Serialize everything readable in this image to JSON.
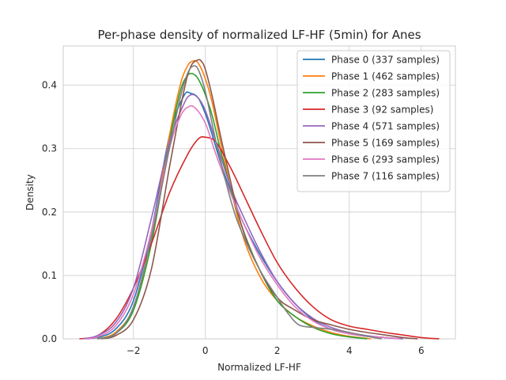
{
  "chart_data": {
    "type": "line",
    "title": "Per-phase density of normalized LF-HF (5min) for Anes",
    "xlabel": "Normalized LF-HF",
    "ylabel": "Density",
    "xlim": [
      -3.95,
      6.95
    ],
    "ylim": [
      0,
      0.462
    ],
    "x_ticks": [
      -2,
      0,
      2,
      4,
      6
    ],
    "x_tick_labels": [
      "−2",
      "0",
      "2",
      "4",
      "6"
    ],
    "y_ticks": [
      0.0,
      0.1,
      0.2,
      0.3,
      0.4
    ],
    "y_tick_labels": [
      "0.0",
      "0.1",
      "0.2",
      "0.3",
      "0.4"
    ],
    "grid": true,
    "legend_position": "top-right",
    "series": [
      {
        "name": "Phase 0 (337 samples)",
        "color": "#1f77b4",
        "x": [
          -3.3,
          -3.0,
          -2.5,
          -2.0,
          -1.5,
          -1.0,
          -0.6,
          -0.4,
          -0.2,
          0.0,
          0.2,
          0.5,
          1.0,
          1.5,
          2.0,
          2.5,
          3.0,
          3.5,
          4.0,
          4.5,
          5.0,
          5.4
        ],
        "y": [
          0.0,
          0.002,
          0.015,
          0.06,
          0.17,
          0.32,
          0.383,
          0.387,
          0.38,
          0.355,
          0.32,
          0.265,
          0.19,
          0.135,
          0.09,
          0.055,
          0.03,
          0.015,
          0.008,
          0.004,
          0.002,
          0.0
        ]
      },
      {
        "name": "Phase 1 (462 samples)",
        "color": "#ff7f0e",
        "x": [
          -3.0,
          -2.5,
          -2.0,
          -1.5,
          -1.0,
          -0.7,
          -0.5,
          -0.35,
          -0.2,
          0.0,
          0.2,
          0.5,
          1.0,
          1.5,
          2.0,
          2.5,
          3.0,
          3.5,
          4.0,
          4.6
        ],
        "y": [
          0.0,
          0.01,
          0.05,
          0.16,
          0.32,
          0.4,
          0.43,
          0.438,
          0.435,
          0.41,
          0.37,
          0.29,
          0.17,
          0.1,
          0.06,
          0.035,
          0.02,
          0.01,
          0.004,
          0.0
        ]
      },
      {
        "name": "Phase 2 (283 samples)",
        "color": "#2ca02c",
        "x": [
          -3.0,
          -2.5,
          -2.0,
          -1.5,
          -1.0,
          -0.7,
          -0.5,
          -0.35,
          -0.2,
          0.0,
          0.2,
          0.5,
          1.0,
          1.5,
          2.0,
          2.5,
          3.0,
          3.5,
          4.0,
          4.5
        ],
        "y": [
          0.0,
          0.008,
          0.045,
          0.15,
          0.31,
          0.39,
          0.415,
          0.418,
          0.41,
          0.385,
          0.35,
          0.28,
          0.18,
          0.11,
          0.06,
          0.035,
          0.018,
          0.008,
          0.003,
          0.0
        ]
      },
      {
        "name": "Phase 3 (92 samples)",
        "color": "#d62728",
        "x": [
          -3.5,
          -3.0,
          -2.5,
          -2.0,
          -1.5,
          -1.0,
          -0.5,
          -0.2,
          0.0,
          0.3,
          0.7,
          1.0,
          1.5,
          2.0,
          2.5,
          3.0,
          3.5,
          4.0,
          4.5,
          5.0,
          5.5,
          6.0,
          6.5
        ],
        "y": [
          0.0,
          0.005,
          0.03,
          0.08,
          0.15,
          0.23,
          0.29,
          0.315,
          0.318,
          0.31,
          0.27,
          0.235,
          0.175,
          0.12,
          0.08,
          0.05,
          0.03,
          0.02,
          0.015,
          0.01,
          0.006,
          0.002,
          0.0
        ]
      },
      {
        "name": "Phase 4 (571 samples)",
        "color": "#9467bd",
        "x": [
          -3.4,
          -3.0,
          -2.5,
          -2.0,
          -1.5,
          -1.0,
          -0.6,
          -0.4,
          -0.2,
          0.0,
          0.3,
          0.7,
          1.0,
          1.5,
          2.0,
          2.5,
          3.0,
          3.5,
          4.0,
          4.5,
          5.0,
          5.5
        ],
        "y": [
          0.0,
          0.005,
          0.025,
          0.08,
          0.19,
          0.31,
          0.37,
          0.385,
          0.38,
          0.36,
          0.31,
          0.24,
          0.2,
          0.14,
          0.09,
          0.055,
          0.032,
          0.018,
          0.01,
          0.005,
          0.002,
          0.0
        ]
      },
      {
        "name": "Phase 5 (169 samples)",
        "color": "#8c564b",
        "x": [
          -2.9,
          -2.5,
          -2.0,
          -1.5,
          -1.0,
          -0.6,
          -0.4,
          -0.2,
          -0.1,
          0.0,
          0.2,
          0.5,
          1.0,
          1.5,
          2.0,
          2.5,
          3.0,
          3.5,
          4.0,
          4.5,
          5.0,
          5.5,
          5.9
        ],
        "y": [
          0.0,
          0.005,
          0.03,
          0.11,
          0.27,
          0.39,
          0.43,
          0.44,
          0.437,
          0.425,
          0.38,
          0.3,
          0.18,
          0.11,
          0.065,
          0.045,
          0.03,
          0.022,
          0.015,
          0.01,
          0.006,
          0.002,
          0.0
        ]
      },
      {
        "name": "Phase 6 (293 samples)",
        "color": "#e377c2",
        "x": [
          -3.3,
          -3.0,
          -2.5,
          -2.0,
          -1.5,
          -1.0,
          -0.7,
          -0.5,
          -0.3,
          0.0,
          0.3,
          0.7,
          1.0,
          1.5,
          2.0,
          2.5,
          3.0,
          3.5,
          4.0,
          4.5,
          5.0,
          5.4
        ],
        "y": [
          0.0,
          0.003,
          0.02,
          0.07,
          0.17,
          0.3,
          0.35,
          0.365,
          0.365,
          0.34,
          0.29,
          0.23,
          0.19,
          0.13,
          0.085,
          0.05,
          0.028,
          0.015,
          0.008,
          0.004,
          0.002,
          0.0
        ]
      },
      {
        "name": "Phase 7 (116 samples)",
        "color": "#7f7f7f",
        "x": [
          -3.0,
          -2.5,
          -2.0,
          -1.5,
          -1.0,
          -0.7,
          -0.5,
          -0.35,
          -0.2,
          0.0,
          0.3,
          0.7,
          1.0,
          1.5,
          2.0,
          2.3,
          2.6,
          3.0,
          3.5,
          4.0,
          4.5,
          4.9
        ],
        "y": [
          0.0,
          0.008,
          0.05,
          0.16,
          0.3,
          0.38,
          0.418,
          0.43,
          0.425,
          0.39,
          0.31,
          0.22,
          0.17,
          0.11,
          0.065,
          0.04,
          0.022,
          0.018,
          0.015,
          0.01,
          0.004,
          0.0
        ]
      }
    ]
  }
}
